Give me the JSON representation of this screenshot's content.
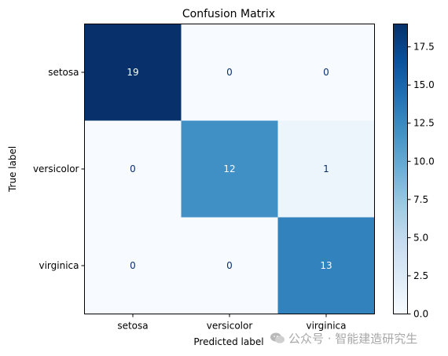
{
  "chart_data": {
    "type": "heatmap",
    "title": "Confusion Matrix",
    "xlabel": "Predicted label",
    "ylabel": "True label",
    "x_categories": [
      "setosa",
      "versicolor",
      "virginica"
    ],
    "y_categories": [
      "setosa",
      "versicolor",
      "virginica"
    ],
    "values": [
      [
        19,
        0,
        0
      ],
      [
        0,
        12,
        1
      ],
      [
        0,
        0,
        13
      ]
    ],
    "colormap": "Blues",
    "colorbar": {
      "min": 0,
      "max": 19,
      "ticks": [
        0.0,
        2.5,
        5.0,
        7.5,
        10.0,
        12.5,
        15.0,
        17.5
      ],
      "tick_labels": [
        "0.0",
        "2.5",
        "5.0",
        "7.5",
        "10.0",
        "12.5",
        "15.0",
        "17.5"
      ]
    },
    "grid": false
  },
  "watermark": {
    "text": "公众号 · 智能建造研究生"
  },
  "colors": {
    "cmap_low": "#f7fbff",
    "cmap_high": "#08306b",
    "text_on_light": "#08306b",
    "text_on_dark": "#f7fbff",
    "axis": "#000000"
  }
}
